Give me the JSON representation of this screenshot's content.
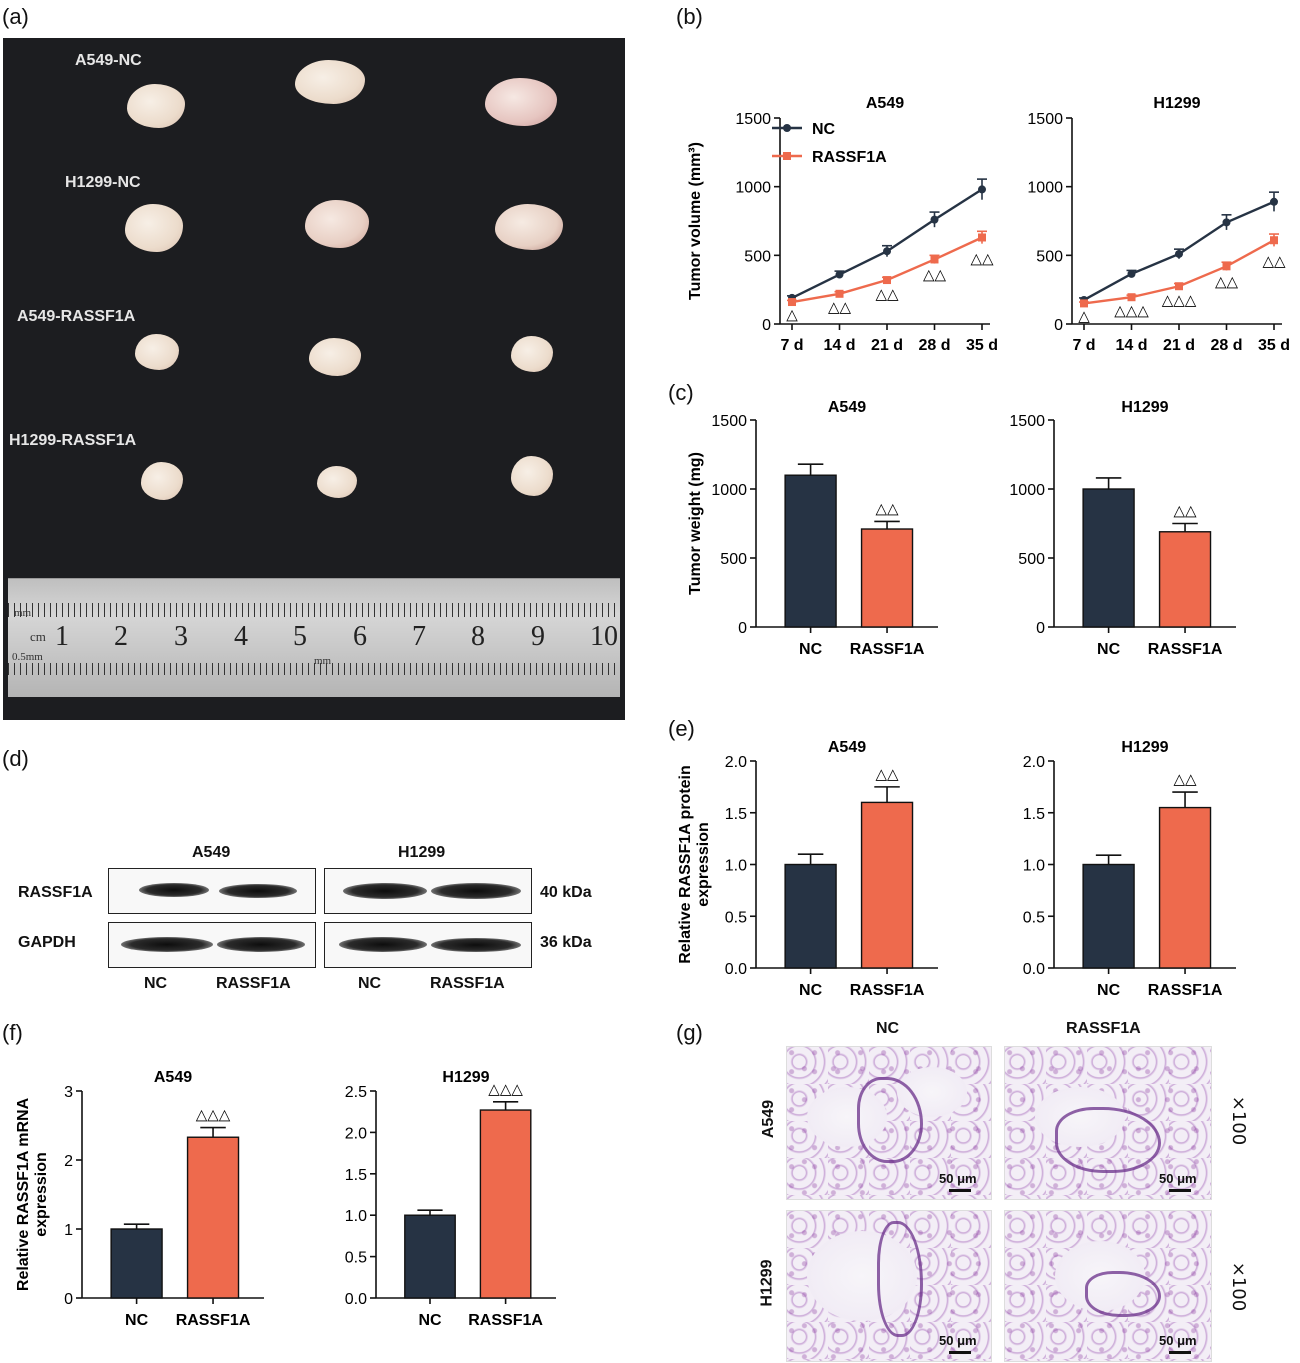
{
  "colors": {
    "nc": "#263344",
    "rassf1a": "#ee6a4d",
    "photo_bg": "#1c1d20"
  },
  "panels": {
    "a": "(a)",
    "b": "(b)",
    "c": "(c)",
    "d": "(d)",
    "e": "(e)",
    "f": "(f)",
    "g": "(g)"
  },
  "photo": {
    "row_labels": [
      "A549-NC",
      "H1299-NC",
      "A549-RASSF1A",
      "H1299-RASSF1A"
    ],
    "ruler": {
      "numbers": [
        "1",
        "2",
        "3",
        "4",
        "5",
        "6",
        "7",
        "8",
        "9",
        "10"
      ],
      "mm": "mm",
      "cm": "cm",
      "half_mm": "0.5mm",
      "mm2": "mm"
    }
  },
  "western": {
    "cell_lines": [
      "A549",
      "H1299"
    ],
    "rows": [
      {
        "protein": "RASSF1A",
        "size": "40 kDa"
      },
      {
        "protein": "GAPDH",
        "size": "36 kDa"
      }
    ],
    "lanes": [
      "NC",
      "RASSF1A",
      "NC",
      "RASSF1A"
    ]
  },
  "histology": {
    "columns": [
      "NC",
      "RASSF1A"
    ],
    "rows": [
      "A549",
      "H1299"
    ],
    "magnification": "×100",
    "scale": "50 μm"
  },
  "chart_data": [
    {
      "panel": "b",
      "type": "line",
      "title": "A549",
      "ylabel": "Tumor volume (mm³)",
      "ylim": [
        0,
        1500
      ],
      "yticks": [
        0,
        500,
        1000,
        1500
      ],
      "x": [
        "7 d",
        "14 d",
        "21 d",
        "28 d",
        "35 d"
      ],
      "series": [
        {
          "name": "NC",
          "values": [
            190,
            360,
            530,
            760,
            980
          ],
          "errors": [
            15,
            25,
            40,
            55,
            75
          ]
        },
        {
          "name": "RASSF1A",
          "values": [
            160,
            220,
            320,
            470,
            630
          ],
          "errors": [
            12,
            15,
            20,
            30,
            45
          ]
        }
      ],
      "sig": [
        "△",
        "△△",
        "△△",
        "△△",
        "△△"
      ],
      "legend": "top-left"
    },
    {
      "panel": "b",
      "type": "line",
      "title": "H1299",
      "ylim": [
        0,
        1500
      ],
      "yticks": [
        0,
        500,
        1000,
        1500
      ],
      "x": [
        "7 d",
        "14 d",
        "21 d",
        "28 d",
        "35 d"
      ],
      "series": [
        {
          "name": "NC",
          "values": [
            175,
            365,
            510,
            740,
            890
          ],
          "errors": [
            15,
            25,
            35,
            55,
            70
          ]
        },
        {
          "name": "RASSF1A",
          "values": [
            150,
            195,
            275,
            420,
            610
          ],
          "errors": [
            10,
            15,
            20,
            30,
            45
          ]
        }
      ],
      "sig": [
        "△",
        "△△△",
        "△△△",
        "△△",
        "△△"
      ]
    },
    {
      "panel": "c",
      "type": "bar",
      "title": "A549",
      "ylabel": "Tumor weight (mg)",
      "ylim": [
        0,
        1500
      ],
      "yticks": [
        0,
        500,
        1000,
        1500
      ],
      "categories": [
        "NC",
        "RASSF1A"
      ],
      "values": [
        1100,
        710
      ],
      "errors": [
        80,
        55
      ],
      "sig": [
        "",
        "△△"
      ]
    },
    {
      "panel": "c",
      "type": "bar",
      "title": "H1299",
      "ylim": [
        0,
        1500
      ],
      "yticks": [
        0,
        500,
        1000,
        1500
      ],
      "categories": [
        "NC",
        "RASSF1A"
      ],
      "values": [
        1000,
        690
      ],
      "errors": [
        80,
        60
      ],
      "sig": [
        "",
        "△△"
      ]
    },
    {
      "panel": "e",
      "type": "bar",
      "title": "A549",
      "ylabel": "Relative RASSF1A protein expression",
      "ylim": [
        0,
        2.0
      ],
      "yticks": [
        "0.0",
        "0.5",
        "1.0",
        "1.5",
        "2.0"
      ],
      "categories": [
        "NC",
        "RASSF1A"
      ],
      "values": [
        1.0,
        1.6
      ],
      "errors": [
        0.1,
        0.15
      ],
      "sig": [
        "",
        "△△"
      ]
    },
    {
      "panel": "e",
      "type": "bar",
      "title": "H1299",
      "ylim": [
        0,
        2.0
      ],
      "yticks": [
        "0.0",
        "0.5",
        "1.0",
        "1.5",
        "2.0"
      ],
      "categories": [
        "NC",
        "RASSF1A"
      ],
      "values": [
        1.0,
        1.55
      ],
      "errors": [
        0.09,
        0.15
      ],
      "sig": [
        "",
        "△△"
      ]
    },
    {
      "panel": "f",
      "type": "bar",
      "title": "A549",
      "ylabel": "Relative RASSF1A mRNA expression",
      "ylim": [
        0,
        3
      ],
      "yticks": [
        "0",
        "1",
        "2",
        "3"
      ],
      "categories": [
        "NC",
        "RASSF1A"
      ],
      "values": [
        1.0,
        2.33
      ],
      "errors": [
        0.07,
        0.14
      ],
      "sig": [
        "",
        "△△△"
      ]
    },
    {
      "panel": "f",
      "type": "bar",
      "title": "H1299",
      "ylim": [
        0,
        2.5
      ],
      "yticks": [
        "0.0",
        "0.5",
        "1.0",
        "1.5",
        "2.0",
        "2.5"
      ],
      "categories": [
        "NC",
        "RASSF1A"
      ],
      "values": [
        1.0,
        2.27
      ],
      "errors": [
        0.06,
        0.1
      ],
      "sig": [
        "",
        "△△△"
      ]
    }
  ]
}
